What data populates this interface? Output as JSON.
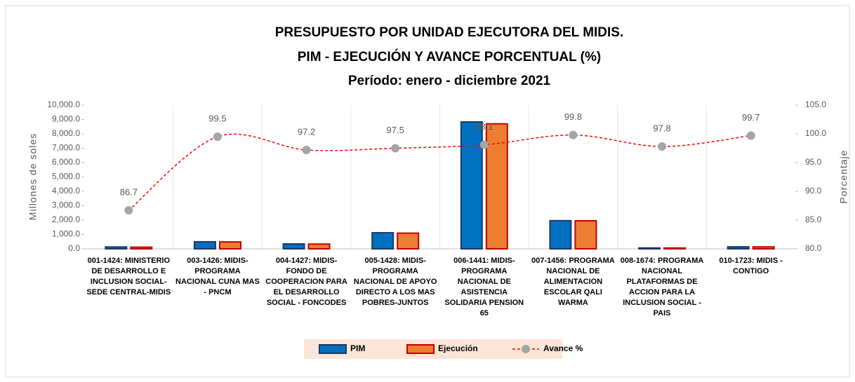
{
  "chart_data": {
    "type": "bar_line",
    "title": [
      "PRESUPUESTO POR UNIDAD EJECUTORA DEL MIDIS.",
      "PIM - EJECUCIÓN Y AVANCE PORCENTUAL (%)",
      "Período: enero - diciembre  2021"
    ],
    "ylabel": "Millones de soles",
    "y2label": "Porcentaje",
    "categories": [
      "001-1424: MINISTERIO DE DESARROLLO E INCLUSION SOCIAL-SEDE CENTRAL-MIDIS",
      "003-1426: MIDIS-PROGRAMA NACIONAL CUNA MAS - PNCM",
      "004-1427: MIDIS-FONDO DE COOPERACION PARA EL DESARROLLO SOCIAL - FONCODES",
      "005-1428: MIDIS-PROGRAMA NACIONAL DE APOYO DIRECTO A LOS MAS POBRES-JUNTOS",
      "006-1441: MIDIS-PROGRAMA NACIONAL DE ASISTENCIA SOLIDARIA PENSION 65",
      "007-1456: PROGRAMA NACIONAL DE ALIMENTACION ESCOLAR QALI WARMA",
      "008-1674: PROGRAMA NACIONAL PLATAFORMAS DE ACCION PARA LA INCLUSION SOCIAL - PAIS",
      "010-1723: MIDIS - CONTIGO"
    ],
    "series": [
      {
        "name": "PIM",
        "color": "#0070c0",
        "values": [
          130,
          490,
          340,
          1120,
          8830,
          1960,
          60,
          140
        ]
      },
      {
        "name": "Ejecución",
        "color": "#ed7d31",
        "values": [
          115,
          480,
          330,
          1090,
          8700,
          1950,
          58,
          135
        ]
      },
      {
        "name": "Avance %",
        "color": "#ff0000",
        "axis": "y2",
        "values": [
          86.7,
          99.5,
          97.2,
          97.5,
          98.1,
          99.8,
          97.8,
          99.7
        ]
      }
    ],
    "ylim": [
      0,
      10000
    ],
    "yticks": [
      {
        "value": 0,
        "label": "0.0"
      },
      {
        "value": 1000,
        "label": "1,000.0"
      },
      {
        "value": 2000,
        "label": "2,000.0"
      },
      {
        "value": 3000,
        "label": "3,000.0"
      },
      {
        "value": 4000,
        "label": "4,000.0"
      },
      {
        "value": 5000,
        "label": "5,000.0"
      },
      {
        "value": 6000,
        "label": "6,000.0"
      },
      {
        "value": 7000,
        "label": "7,000.0"
      },
      {
        "value": 8000,
        "label": "8,000.0"
      },
      {
        "value": 9000,
        "label": "9,000.0"
      },
      {
        "value": 10000,
        "label": "10,000.0"
      }
    ],
    "y2lim": [
      80,
      105
    ],
    "y2ticks": [
      {
        "value": 80,
        "label": "80.0"
      },
      {
        "value": 85,
        "label": "85.0"
      },
      {
        "value": 90,
        "label": "90.0"
      },
      {
        "value": 95,
        "label": "95.0"
      },
      {
        "value": 100,
        "label": "100.0"
      },
      {
        "value": 105,
        "label": "105.0"
      }
    ]
  }
}
